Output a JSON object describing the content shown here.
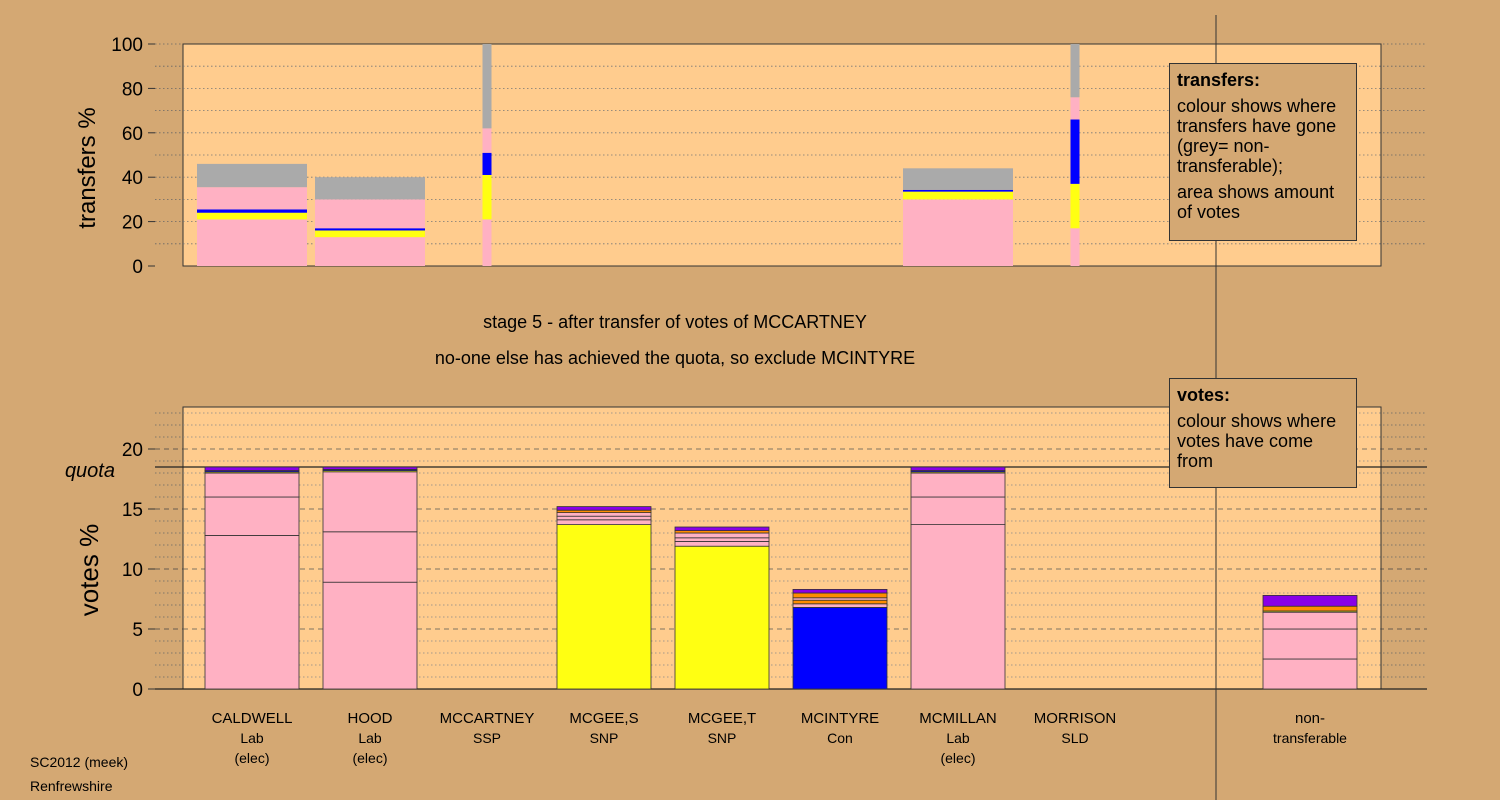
{
  "colors": {
    "background": "#D4A873",
    "plot_bg": "#FFCC8E",
    "Lab": "#FFB1C3",
    "SNP": "#FFFF12",
    "Con": "#0000FF",
    "SSP": "#FF8C00",
    "SLD": "#8A00E6",
    "nontransferable": "#AAAAAA"
  },
  "title": {
    "line1": "stage 5 - after transfer of votes of MCCARTNEY",
    "line2": "no-one else has achieved the quota, so exclude MCINTYRE"
  },
  "footer": {
    "line1": "SC2012 (meek)",
    "line2": "Renfrewshire"
  },
  "legend_transfers": {
    "heading": "transfers:",
    "text1": "colour shows where transfers have gone (grey= non-transferable);",
    "text2": "area shows amount of votes"
  },
  "legend_votes": {
    "heading": "votes:",
    "text1": "colour shows where votes have come from"
  },
  "chart_data": [
    {
      "type": "bar",
      "name": "transfers",
      "ylabel": "transfers %",
      "ylim": [
        0,
        100
      ],
      "yticks": [
        0,
        20,
        40,
        60,
        80,
        100
      ],
      "grid": "dotted every 10",
      "columns": [
        {
          "candidate": "CALDWELL",
          "segments": [
            {
              "party": "Lab",
              "from": 0,
              "to": 21
            },
            {
              "party": "SNP",
              "from": 21,
              "to": 24
            },
            {
              "party": "Con",
              "from": 24,
              "to": 25.5
            },
            {
              "party": "Lab",
              "from": 25.5,
              "to": 35.5
            },
            {
              "party": "nontransferable",
              "from": 35.5,
              "to": 46
            }
          ]
        },
        {
          "candidate": "HOOD",
          "segments": [
            {
              "party": "Lab",
              "from": 0,
              "to": 13
            },
            {
              "party": "SNP",
              "from": 13,
              "to": 16
            },
            {
              "party": "Con",
              "from": 16,
              "to": 17
            },
            {
              "party": "Lab",
              "from": 17,
              "to": 30
            },
            {
              "party": "nontransferable",
              "from": 30,
              "to": 40
            }
          ]
        },
        {
          "candidate": "MCCARTNEY",
          "segments": [
            {
              "party": "Lab",
              "from": 0,
              "to": 21
            },
            {
              "party": "SNP",
              "from": 21,
              "to": 41
            },
            {
              "party": "Con",
              "from": 41,
              "to": 51
            },
            {
              "party": "Lab",
              "from": 51,
              "to": 62
            },
            {
              "party": "nontransferable",
              "from": 62,
              "to": 100
            }
          ]
        },
        {
          "candidate": "MCGEE,S",
          "segments": []
        },
        {
          "candidate": "MCGEE,T",
          "segments": []
        },
        {
          "candidate": "MCINTYRE",
          "segments": []
        },
        {
          "candidate": "MCMILLAN",
          "segments": [
            {
              "party": "Lab",
              "from": 0,
              "to": 30
            },
            {
              "party": "SNP",
              "from": 30,
              "to": 33.5
            },
            {
              "party": "Con",
              "from": 33.5,
              "to": 34.3
            },
            {
              "party": "nontransferable",
              "from": 34.3,
              "to": 44
            }
          ]
        },
        {
          "candidate": "MORRISON",
          "segments": [
            {
              "party": "Lab",
              "from": 0,
              "to": 17
            },
            {
              "party": "SNP",
              "from": 17,
              "to": 37
            },
            {
              "party": "Con",
              "from": 37,
              "to": 66
            },
            {
              "party": "Lab",
              "from": 66,
              "to": 76
            },
            {
              "party": "nontransferable",
              "from": 76,
              "to": 100
            }
          ]
        }
      ]
    },
    {
      "type": "bar",
      "name": "votes",
      "ylabel": "votes %",
      "ylim": [
        0,
        23.5
      ],
      "yticks": [
        0,
        5,
        10,
        15,
        20
      ],
      "quota": 18.5,
      "quota_label": "quota",
      "grid": "dotted every 1, dashed every 5",
      "categories": [
        {
          "name": "CALDWELL",
          "party": "Lab",
          "status": "(elec)"
        },
        {
          "name": "HOOD",
          "party": "Lab",
          "status": "(elec)"
        },
        {
          "name": "MCCARTNEY",
          "party": "SSP",
          "status": ""
        },
        {
          "name": "MCGEE,S",
          "party": "SNP",
          "status": ""
        },
        {
          "name": "MCGEE,T",
          "party": "SNP",
          "status": ""
        },
        {
          "name": "MCINTYRE",
          "party": "Con",
          "status": ""
        },
        {
          "name": "MCMILLAN",
          "party": "Lab",
          "status": "(elec)"
        },
        {
          "name": "MORRISON",
          "party": "SLD",
          "status": ""
        },
        {
          "name": "",
          "party": "",
          "status": ""
        },
        {
          "name": "non-",
          "party": "transferable",
          "status": ""
        }
      ],
      "bars": [
        {
          "candidate": "CALDWELL",
          "segments": [
            {
              "party": "Lab",
              "from": 0,
              "to": 12.8
            },
            {
              "party": "Lab",
              "from": 12.8,
              "to": 16
            },
            {
              "party": "Lab",
              "from": 16,
              "to": 18
            },
            {
              "party": "SNP",
              "from": 18,
              "to": 18.1
            },
            {
              "party": "Con",
              "from": 18.1,
              "to": 18.2
            },
            {
              "party": "SLD",
              "from": 18.2,
              "to": 18.5
            }
          ]
        },
        {
          "candidate": "HOOD",
          "segments": [
            {
              "party": "Lab",
              "from": 0,
              "to": 8.9
            },
            {
              "party": "Lab",
              "from": 8.9,
              "to": 13.1
            },
            {
              "party": "Lab",
              "from": 13.1,
              "to": 18.1
            },
            {
              "party": "SNP",
              "from": 18.1,
              "to": 18.2
            },
            {
              "party": "Con",
              "from": 18.2,
              "to": 18.3
            },
            {
              "party": "SLD",
              "from": 18.3,
              "to": 18.5
            }
          ]
        },
        {
          "candidate": "MCCARTNEY",
          "segments": []
        },
        {
          "candidate": "MCGEE,S",
          "segments": [
            {
              "party": "SNP",
              "from": 0,
              "to": 13.7
            },
            {
              "party": "Lab",
              "from": 13.7,
              "to": 14.1
            },
            {
              "party": "Lab",
              "from": 14.1,
              "to": 14.4
            },
            {
              "party": "Lab",
              "from": 14.4,
              "to": 14.7
            },
            {
              "party": "SSP",
              "from": 14.7,
              "to": 14.9
            },
            {
              "party": "SLD",
              "from": 14.9,
              "to": 15.2
            }
          ]
        },
        {
          "candidate": "MCGEE,T",
          "segments": [
            {
              "party": "SNP",
              "from": 0,
              "to": 11.9
            },
            {
              "party": "Lab",
              "from": 11.9,
              "to": 12.3
            },
            {
              "party": "Lab",
              "from": 12.3,
              "to": 12.6
            },
            {
              "party": "Lab",
              "from": 12.6,
              "to": 13
            },
            {
              "party": "SSP",
              "from": 13,
              "to": 13.2
            },
            {
              "party": "SLD",
              "from": 13.2,
              "to": 13.5
            }
          ]
        },
        {
          "candidate": "MCINTYRE",
          "segments": [
            {
              "party": "Con",
              "from": 0,
              "to": 6.8
            },
            {
              "party": "Lab",
              "from": 6.8,
              "to": 7.1
            },
            {
              "party": "SSP",
              "from": 7.1,
              "to": 7.4
            },
            {
              "party": "Lab",
              "from": 7.4,
              "to": 7.6
            },
            {
              "party": "SSP",
              "from": 7.6,
              "to": 8.0
            },
            {
              "party": "SLD",
              "from": 8.0,
              "to": 8.3
            }
          ]
        },
        {
          "candidate": "MCMILLAN",
          "segments": [
            {
              "party": "Lab",
              "from": 0,
              "to": 13.7
            },
            {
              "party": "Lab",
              "from": 13.7,
              "to": 16
            },
            {
              "party": "Lab",
              "from": 16,
              "to": 18
            },
            {
              "party": "SNP",
              "from": 18,
              "to": 18.1
            },
            {
              "party": "Con",
              "from": 18.1,
              "to": 18.2
            },
            {
              "party": "SLD",
              "from": 18.2,
              "to": 18.5
            }
          ]
        },
        {
          "candidate": "MORRISON",
          "segments": []
        },
        {
          "candidate": "",
          "segments": []
        },
        {
          "candidate": "non-transferable",
          "segments": [
            {
              "party": "Lab",
              "from": 0,
              "to": 2.5
            },
            {
              "party": "Lab",
              "from": 2.5,
              "to": 5
            },
            {
              "party": "Lab",
              "from": 5,
              "to": 6.4
            },
            {
              "party": "SNP",
              "from": 6.4,
              "to": 6.5
            },
            {
              "party": "SSP",
              "from": 6.5,
              "to": 6.9
            },
            {
              "party": "SLD",
              "from": 6.9,
              "to": 7.8
            }
          ]
        }
      ]
    }
  ]
}
